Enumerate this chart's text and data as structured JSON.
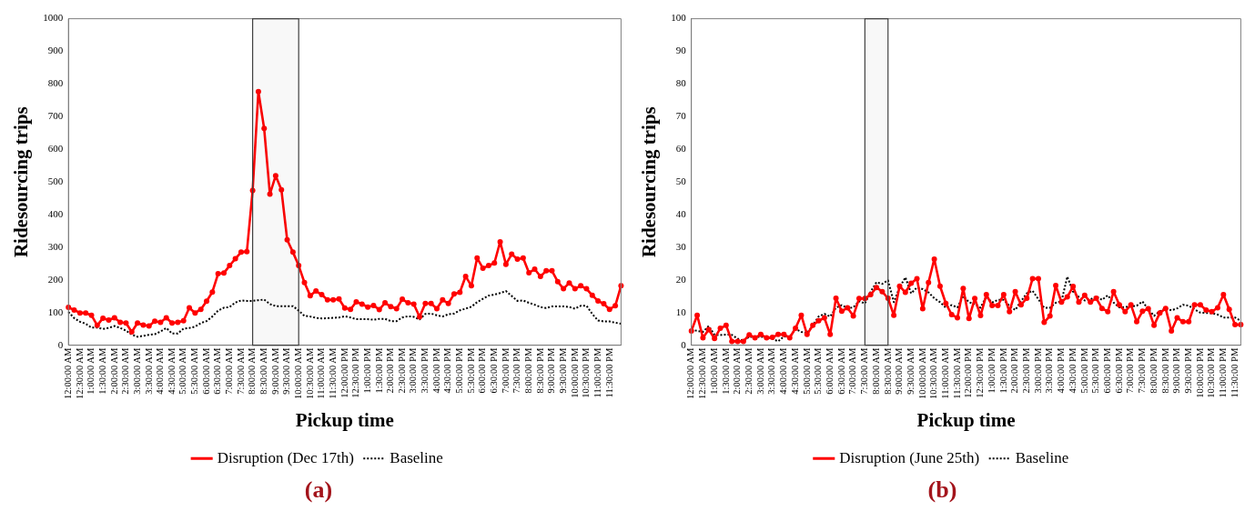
{
  "chart_data": [
    {
      "type": "line",
      "title": "(a)",
      "xlabel": "Pickup time",
      "ylabel": "Ridesourcing trips",
      "legend": "bottom",
      "grid": false,
      "categories": [
        "12:00:00 AM",
        null,
        "12:30:00 AM",
        null,
        "1:00:00 AM",
        null,
        "1:30:00 AM",
        null,
        "2:00:00 AM",
        null,
        "2:30:00 AM",
        null,
        "3:00:00 AM",
        null,
        "3:30:00 AM",
        null,
        "4:00:00 AM",
        null,
        "4:30:00 AM",
        null,
        "5:00:00 AM",
        null,
        "5:30:00 AM",
        null,
        "6:00:00 AM",
        null,
        "6:30:00 AM",
        null,
        "7:00:00 AM",
        null,
        "7:30:00 AM",
        null,
        "8:00:00 AM",
        null,
        "8:30:00 AM",
        null,
        "9:00:00 AM",
        null,
        "9:30:00 AM",
        null,
        "10:00:00 AM",
        null,
        "10:30:00 AM",
        null,
        "11:00:00 AM",
        null,
        "11:30:00 AM",
        null,
        "12:00:00 PM",
        null,
        "12:30:00 PM",
        null,
        "1:00:00 PM",
        null,
        "1:30:00 PM",
        null,
        "2:00:00 PM",
        null,
        "2:30:00 PM",
        null,
        "3:00:00 PM",
        null,
        "3:30:00 PM",
        null,
        "4:00:00 PM",
        null,
        "4:30:00 PM",
        null,
        "5:00:00 PM",
        null,
        "5:30:00 PM",
        null,
        "6:00:00 PM",
        null,
        "6:30:00 PM",
        null,
        "7:00:00 PM",
        null,
        "7:30:00 PM",
        null,
        "8:00:00 PM",
        null,
        "8:30:00 PM",
        null,
        "9:00:00 PM",
        null,
        "9:30:00 PM",
        null,
        "10:00:00 PM",
        null,
        "10:30:00 PM",
        null,
        "11:00:00 PM",
        null,
        "11:30:00 PM",
        null,
        null
      ],
      "ylim": [
        0,
        1000
      ],
      "yticks": [
        0,
        100,
        200,
        300,
        400,
        500,
        600,
        700,
        800,
        900,
        1000
      ],
      "bands": [
        {
          "axis": "x",
          "from": "8:00:00 AM",
          "to": "10:00:00 AM",
          "color": "#404040"
        }
      ],
      "series": [
        {
          "name": "Disruption (Dec 17th)",
          "color": "#ff0000",
          "marker": "circle",
          "line_style": "solid",
          "values": [
            116,
            108,
            99,
            99,
            92,
            61,
            83,
            77,
            84,
            70,
            68,
            41,
            68,
            62,
            59,
            74,
            70,
            84,
            68,
            70,
            75,
            115,
            99,
            110,
            135,
            163,
            219,
            221,
            244,
            265,
            285,
            287,
            474,
            777,
            664,
            463,
            519,
            476,
            323,
            285,
            244,
            192,
            152,
            166,
            155,
            139,
            139,
            142,
            114,
            110,
            133,
            126,
            117,
            122,
            109,
            130,
            118,
            112,
            141,
            130,
            126,
            87,
            128,
            128,
            112,
            139,
            128,
            157,
            162,
            211,
            182,
            267,
            236,
            244,
            252,
            317,
            248,
            279,
            264,
            267,
            222,
            233,
            211,
            228,
            228,
            195,
            173,
            191,
            173,
            182,
            173,
            153,
            136,
            127,
            110,
            121,
            182
          ]
        },
        {
          "name": "Baseline",
          "color": "#000000",
          "marker": "none",
          "line_style": "dotted",
          "values": [
            102,
            83,
            72,
            66,
            54,
            54,
            50,
            53,
            59,
            53,
            45,
            33,
            26,
            29,
            32,
            34,
            42,
            53,
            36,
            36,
            51,
            53,
            57,
            68,
            74,
            88,
            106,
            115,
            117,
            131,
            137,
            136,
            136,
            138,
            140,
            126,
            120,
            120,
            120,
            120,
            106,
            90,
            88,
            84,
            82,
            83,
            84,
            85,
            89,
            85,
            80,
            80,
            80,
            78,
            81,
            81,
            74,
            74,
            85,
            89,
            87,
            79,
            96,
            97,
            92,
            88,
            95,
            97,
            107,
            112,
            118,
            132,
            142,
            152,
            155,
            160,
            166,
            151,
            136,
            137,
            130,
            124,
            117,
            114,
            119,
            119,
            119,
            117,
            112,
            121,
            121,
            96,
            76,
            73,
            73,
            69,
            66
          ]
        }
      ]
    },
    {
      "type": "line",
      "title": "(b)",
      "xlabel": "Pickup time",
      "ylabel": "Ridesourcing trips",
      "legend": "bottom",
      "grid": false,
      "categories": [
        "12:00:00 AM",
        null,
        "12:30:00 AM",
        null,
        "1:00:00 AM",
        null,
        "1:30:00 AM",
        null,
        "2:00:00 AM",
        null,
        "2:30:00 AM",
        null,
        "3:00:00 AM",
        null,
        "3:30:00 AM",
        null,
        "4:00:00 AM",
        null,
        "4:30:00 AM",
        null,
        "5:00:00 AM",
        null,
        "5:30:00 AM",
        null,
        "6:00:00 AM",
        null,
        "6:30:00 AM",
        null,
        "7:00:00 AM",
        null,
        "7:30:00 AM",
        null,
        "8:00:00 AM",
        null,
        "8:30:00 AM",
        null,
        "9:00:00 AM",
        null,
        "9:30:00 AM",
        null,
        "10:00:00 AM",
        null,
        "10:30:00 AM",
        null,
        "11:00:00 AM",
        null,
        "11:30:00 AM",
        null,
        "12:00:00 PM",
        null,
        "12:30:00 PM",
        null,
        "1:00:00 PM",
        null,
        "1:30:00 PM",
        null,
        "2:00:00 PM",
        null,
        "2:30:00 PM",
        null,
        "3:00:00 PM",
        null,
        "3:30:00 PM",
        null,
        "4:00:00 PM",
        null,
        "4:30:00 PM",
        null,
        "5:00:00 PM",
        null,
        "5:30:00 PM",
        null,
        "6:00:00 PM",
        null,
        "6:30:00 PM",
        null,
        "7:00:00 PM",
        null,
        "7:30:00 PM",
        null,
        "8:00:00 PM",
        null,
        "8:30:00 PM",
        null,
        "9:00:00 PM",
        null,
        "9:30:00 PM",
        null,
        "10:00:00 PM",
        null,
        "10:30:00 PM",
        null,
        "11:00:00 PM",
        null,
        "11:30:00 PM",
        null
      ],
      "ylim": [
        0,
        100
      ],
      "yticks": [
        0,
        10,
        20,
        30,
        40,
        50,
        60,
        70,
        80,
        90,
        100
      ],
      "bands": [
        {
          "axis": "x",
          "from": "7:30:00 AM",
          "to": "8:30:00 AM",
          "color": "#404040"
        }
      ],
      "series": [
        {
          "name": "Disruption (June 25th)",
          "color": "#ff0000",
          "marker": "circle",
          "line_style": "solid",
          "values": [
            4.4,
            9.2,
            2.3,
            4.8,
            2.1,
            5.2,
            6.1,
            1.2,
            1.2,
            1.2,
            3.2,
            2.3,
            3.3,
            2.3,
            2.4,
            3.3,
            3.3,
            2.3,
            5.2,
            9.2,
            3.3,
            6.1,
            7.5,
            8.4,
            3.3,
            14.4,
            10.4,
            11.5,
            9.0,
            14.3,
            14.3,
            15.5,
            17.7,
            16.4,
            14.4,
            9.2,
            18.1,
            16.2,
            19.0,
            20.4,
            11.2,
            19.2,
            26.4,
            18.1,
            12.8,
            9.4,
            8.4,
            17.4,
            8.2,
            14.3,
            9.1,
            15.5,
            12.2,
            12.2,
            15.5,
            10.3,
            16.4,
            12.4,
            14.4,
            20.4,
            20.4,
            7.0,
            9.0,
            18.3,
            13.2,
            14.8,
            18.0,
            13.2,
            15.3,
            13.2,
            14.4,
            11.3,
            10.3,
            16.4,
            12.4,
            10.3,
            12.4,
            7.2,
            10.4,
            11.2,
            6.1,
            9.9,
            11.3,
            4.4,
            8.4,
            7.2,
            7.2,
            12.4,
            12.4,
            10.8,
            10.3,
            11.5,
            15.5,
            11.0,
            6.3,
            6.3
          ]
        },
        {
          "name": "Baseline",
          "color": "#000000",
          "marker": "none",
          "line_style": "dotted",
          "values": [
            4.8,
            4.4,
            4.1,
            5.9,
            3.2,
            3.1,
            3.3,
            3.2,
            2.0,
            1.4,
            2.6,
            2.6,
            2.6,
            2.5,
            2.0,
            1.2,
            2.7,
            2.5,
            5.0,
            4.1,
            3.7,
            6.1,
            8.8,
            9.6,
            8.8,
            11.5,
            12.3,
            11.3,
            11.6,
            13.5,
            12.8,
            16.4,
            19.3,
            18.8,
            19.9,
            13.2,
            17.7,
            20.8,
            15.9,
            17.7,
            17.2,
            16.2,
            14.4,
            13.2,
            11.5,
            12.3,
            11.6,
            15.0,
            13.2,
            12.6,
            11.5,
            14.9,
            13.1,
            13.9,
            13.9,
            12.1,
            10.8,
            13.5,
            15.9,
            16.7,
            14.1,
            11.5,
            11.5,
            13.0,
            13.5,
            21.0,
            16.4,
            14.8,
            13.7,
            14.0,
            15.0,
            13.9,
            15.3,
            13.1,
            11.6,
            11.7,
            11.9,
            12.1,
            13.4,
            11.0,
            9.0,
            10.4,
            11.3,
            10.7,
            11.3,
            12.4,
            12.1,
            11.0,
            10.0,
            9.9,
            9.8,
            9.4,
            8.5,
            8.5,
            8.5,
            7.5
          ]
        }
      ]
    }
  ]
}
